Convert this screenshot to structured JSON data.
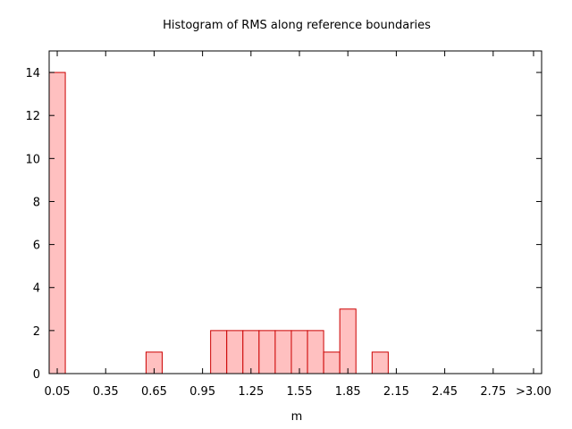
{
  "chart_data": {
    "type": "bar",
    "title": "Histogram of RMS along reference boundaries",
    "xlabel": "m",
    "ylabel": "",
    "ylim": [
      0,
      15
    ],
    "xlim": [
      0,
      3.05
    ],
    "bin_width": 0.1,
    "yticks": [
      0,
      2,
      4,
      6,
      8,
      10,
      12,
      14
    ],
    "xticks": [
      {
        "value": 0.05,
        "label": "0.05"
      },
      {
        "value": 0.35,
        "label": "0.35"
      },
      {
        "value": 0.65,
        "label": "0.65"
      },
      {
        "value": 0.95,
        "label": "0.95"
      },
      {
        "value": 1.25,
        "label": "1.25"
      },
      {
        "value": 1.55,
        "label": "1.55"
      },
      {
        "value": 1.85,
        "label": "1.85"
      },
      {
        "value": 2.15,
        "label": "2.15"
      },
      {
        "value": 2.45,
        "label": "2.45"
      },
      {
        "value": 2.75,
        "label": "2.75"
      },
      {
        "value": 3.0,
        "label": ">3.00"
      }
    ],
    "bins": [
      {
        "x": 0.05,
        "count": 14
      },
      {
        "x": 0.65,
        "count": 1
      },
      {
        "x": 1.05,
        "count": 2
      },
      {
        "x": 1.15,
        "count": 2
      },
      {
        "x": 1.25,
        "count": 2
      },
      {
        "x": 1.35,
        "count": 2
      },
      {
        "x": 1.45,
        "count": 2
      },
      {
        "x": 1.55,
        "count": 2
      },
      {
        "x": 1.65,
        "count": 2
      },
      {
        "x": 1.75,
        "count": 1
      },
      {
        "x": 1.85,
        "count": 3
      },
      {
        "x": 2.05,
        "count": 1
      }
    ],
    "bar_fill": "#ffc0c0",
    "bar_stroke": "#cc0000",
    "grid": false,
    "legend": "none"
  }
}
